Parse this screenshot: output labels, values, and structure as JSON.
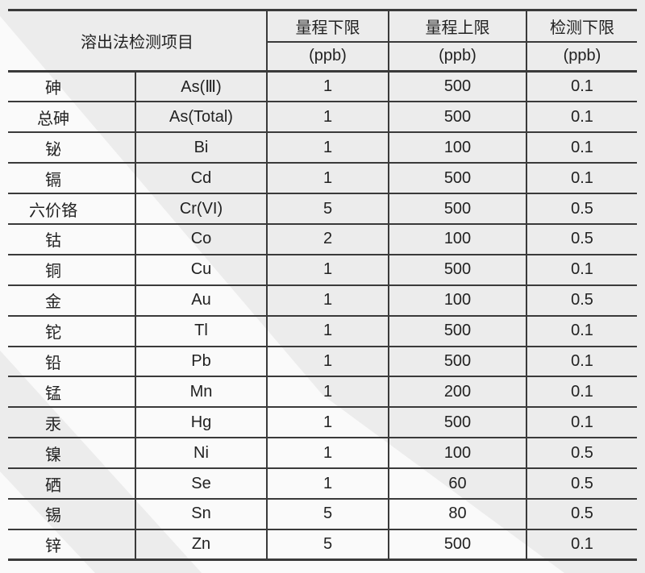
{
  "table": {
    "header": {
      "item_col_label": "溶出法检测项目",
      "columns": [
        {
          "label": "量程下限",
          "unit": "(ppb)"
        },
        {
          "label": "量程上限",
          "unit": "(ppb)"
        },
        {
          "label": "检测下限",
          "unit": "(ppb)"
        }
      ]
    },
    "rows": [
      {
        "name": "砷",
        "symbol": "As(Ⅲ)",
        "range_low": "1",
        "range_high": "500",
        "detection_low": "0.1"
      },
      {
        "name": "总砷",
        "symbol": "As(Total)",
        "range_low": "1",
        "range_high": "500",
        "detection_low": "0.1"
      },
      {
        "name": "铋",
        "symbol": "Bi",
        "range_low": "1",
        "range_high": "100",
        "detection_low": "0.1"
      },
      {
        "name": "镉",
        "symbol": "Cd",
        "range_low": "1",
        "range_high": "500",
        "detection_low": "0.1"
      },
      {
        "name": "六价铬",
        "symbol": "Cr(VI)",
        "range_low": "5",
        "range_high": "500",
        "detection_low": "0.5"
      },
      {
        "name": "钴",
        "symbol": "Co",
        "range_low": "2",
        "range_high": "100",
        "detection_low": "0.5"
      },
      {
        "name": "铜",
        "symbol": "Cu",
        "range_low": "1",
        "range_high": "500",
        "detection_low": "0.1"
      },
      {
        "name": "金",
        "symbol": "Au",
        "range_low": "1",
        "range_high": "100",
        "detection_low": "0.5"
      },
      {
        "name": "铊",
        "symbol": "Tl",
        "range_low": "1",
        "range_high": "500",
        "detection_low": "0.1"
      },
      {
        "name": "铅",
        "symbol": "Pb",
        "range_low": "1",
        "range_high": "500",
        "detection_low": "0.1"
      },
      {
        "name": "锰",
        "symbol": "Mn",
        "range_low": "1",
        "range_high": "200",
        "detection_low": "0.1"
      },
      {
        "name": "汞",
        "symbol": "Hg",
        "range_low": "1",
        "range_high": "500",
        "detection_low": "0.1"
      },
      {
        "name": "镍",
        "symbol": "Ni",
        "range_low": "1",
        "range_high": "100",
        "detection_low": "0.5"
      },
      {
        "name": "硒",
        "symbol": "Se",
        "range_low": "1",
        "range_high": "60",
        "detection_low": "0.5"
      },
      {
        "name": "锡",
        "symbol": "Sn",
        "range_low": "5",
        "range_high": "80",
        "detection_low": "0.5"
      },
      {
        "name": "锌",
        "symbol": "Zn",
        "range_low": "5",
        "range_high": "500",
        "detection_low": "0.1"
      }
    ]
  },
  "colors": {
    "background_gray": "#ececec",
    "background_white": "#fafafa",
    "line": "#3a3a3a",
    "text": "#222222"
  }
}
